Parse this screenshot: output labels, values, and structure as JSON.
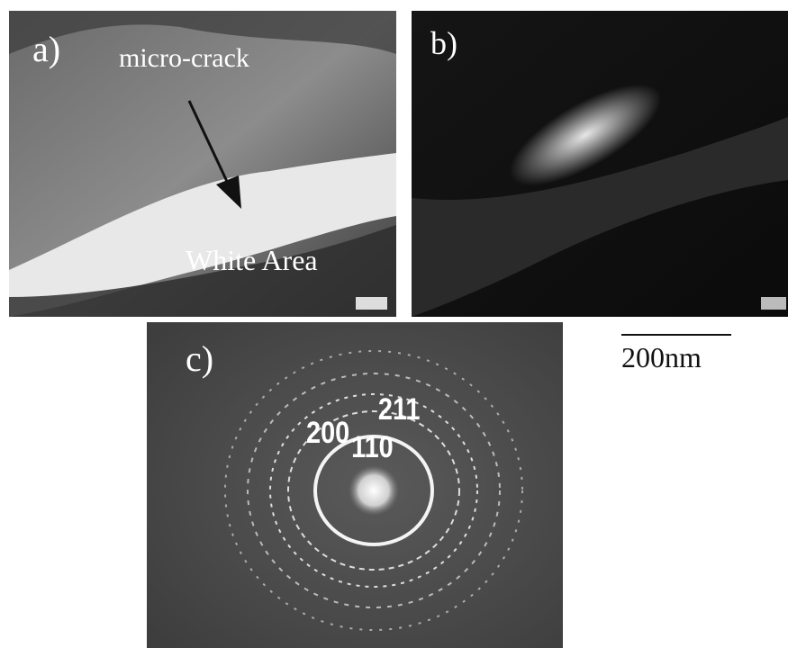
{
  "panels": [
    {
      "label": "a)",
      "annotations": [
        "micro-crack",
        "White Area"
      ]
    },
    {
      "label": "b)"
    },
    {
      "label": "c)",
      "annotations": [
        "200",
        "110",
        "211"
      ]
    }
  ],
  "scale_bar": {
    "label": "200nm"
  }
}
